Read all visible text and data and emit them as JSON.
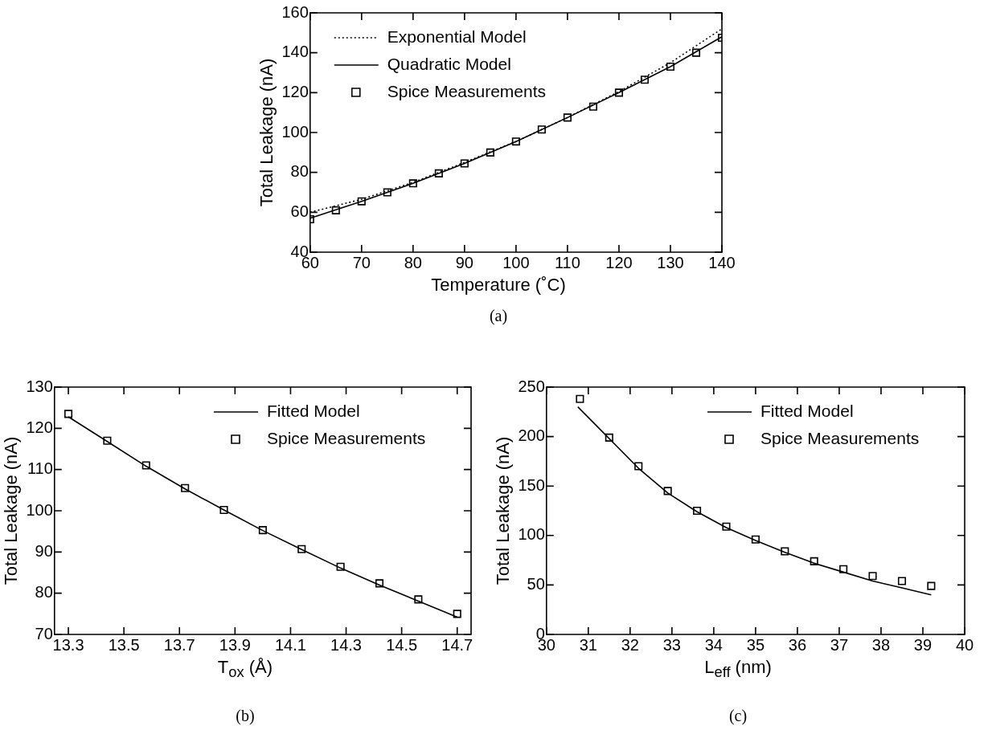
{
  "chart_data": [
    {
      "type": "line",
      "xlabel": "Temperature (˚C)",
      "ylabel": "Total Leakage (nA)",
      "annotations": [
        "(a)"
      ],
      "xlim": [
        60,
        140
      ],
      "xticks": [
        60,
        70,
        80,
        90,
        100,
        110,
        120,
        130,
        140
      ],
      "ylim": [
        40,
        160
      ],
      "yticks": [
        40,
        60,
        80,
        100,
        120,
        140,
        160
      ],
      "legend": "top left",
      "series": [
        {
          "name": "Exponential Model",
          "color": "#000000",
          "line_style": "dotted",
          "marker": "none",
          "x": [
            60,
            70,
            80,
            90,
            100,
            110,
            120,
            130,
            140
          ],
          "values": [
            60,
            66.5,
            75,
            85,
            95.5,
            107.5,
            120.5,
            135,
            152
          ]
        },
        {
          "name": "Quadratic Model",
          "color": "#000000",
          "line_style": "solid",
          "marker": "none",
          "x": [
            60,
            70,
            80,
            90,
            100,
            110,
            120,
            130,
            140
          ],
          "values": [
            57,
            65.5,
            74.5,
            84.5,
            95.5,
            107.5,
            120,
            133,
            148
          ]
        },
        {
          "name": "Spice Measurements",
          "type": "scatter",
          "color": "#000000",
          "marker": "square",
          "x": [
            60,
            65,
            70,
            75,
            80,
            85,
            90,
            95,
            100,
            105,
            110,
            115,
            120,
            125,
            130,
            135,
            140
          ],
          "values": [
            56.5,
            61,
            65.5,
            70,
            74.5,
            79.5,
            84.5,
            90,
            95.5,
            101.5,
            107.5,
            113,
            120,
            126.5,
            133,
            140,
            147.5
          ]
        }
      ]
    },
    {
      "type": "line",
      "xlabel": "T$_{ox}$ (Å)",
      "ylabel": "Total Leakage (nA)",
      "annotations": [
        "(b)"
      ],
      "xlim": [
        13.25,
        14.75
      ],
      "xticks": [
        13.3,
        13.5,
        13.7,
        13.9,
        14.1,
        14.3,
        14.5,
        14.7
      ],
      "ylim": [
        70,
        130
      ],
      "yticks": [
        70,
        80,
        90,
        100,
        110,
        120,
        130
      ],
      "legend": "top right",
      "series": [
        {
          "name": "Fitted Model",
          "color": "#000000",
          "line_style": "solid",
          "marker": "none",
          "x": [
            13.3,
            13.44,
            13.58,
            13.72,
            13.86,
            14.0,
            14.14,
            14.28,
            14.42,
            14.56,
            14.7
          ],
          "values": [
            122.8,
            116.8,
            110.8,
            105.3,
            100.2,
            95.2,
            90.6,
            86.1,
            82,
            78.1,
            74.2
          ]
        },
        {
          "name": "Spice Measurements",
          "type": "scatter",
          "color": "#000000",
          "marker": "square",
          "x": [
            13.3,
            13.44,
            13.58,
            13.72,
            13.86,
            14.0,
            14.14,
            14.28,
            14.42,
            14.56,
            14.7
          ],
          "values": [
            123.5,
            117,
            111,
            105.5,
            100.2,
            95.3,
            90.7,
            86.4,
            82.4,
            78.5,
            75
          ]
        }
      ]
    },
    {
      "type": "line",
      "xlabel": "L$_{eff}$ (nm)",
      "ylabel": "Total Leakage (nA)",
      "annotations": [
        "(c)"
      ],
      "xlim": [
        30,
        40
      ],
      "xticks": [
        30,
        31,
        32,
        33,
        34,
        35,
        36,
        37,
        38,
        39,
        40
      ],
      "ylim": [
        0,
        250
      ],
      "yticks": [
        0,
        50,
        100,
        150,
        200,
        250
      ],
      "legend": "top right",
      "series": [
        {
          "name": "Fitted Model",
          "color": "#000000",
          "line_style": "solid",
          "marker": "none",
          "x": [
            30.75,
            31.5,
            32.2,
            32.9,
            33.6,
            34.3,
            35.0,
            35.7,
            36.4,
            37.1,
            37.8,
            38.5,
            39.2
          ],
          "values": [
            230,
            198,
            168,
            143,
            124,
            108,
            95,
            83,
            72,
            63,
            54,
            47,
            40
          ]
        },
        {
          "name": "Spice Measurements",
          "type": "scatter",
          "color": "#000000",
          "marker": "square",
          "x": [
            30.8,
            31.5,
            32.2,
            32.9,
            33.6,
            34.3,
            35.0,
            35.7,
            36.4,
            37.1,
            37.8,
            38.5,
            39.2
          ],
          "values": [
            238,
            199,
            170,
            145,
            125,
            109,
            96,
            84,
            74,
            66,
            59,
            54,
            49
          ]
        }
      ]
    }
  ]
}
